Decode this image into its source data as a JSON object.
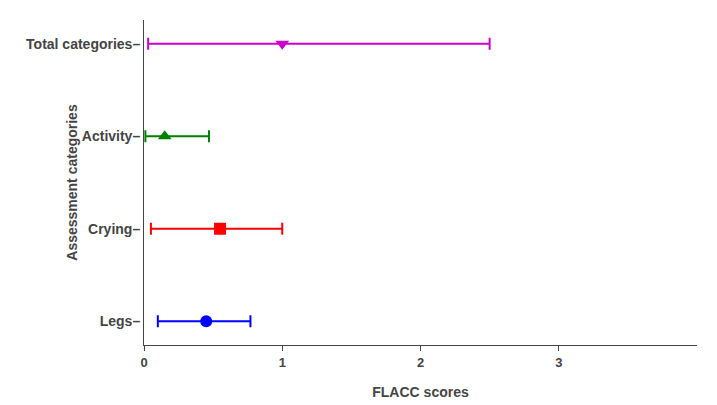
{
  "chart_data": {
    "type": "scatter",
    "categories": [
      "Total categories–",
      "Activity–",
      "Crying–",
      "Legs–"
    ],
    "series": [
      {
        "color": "#cc00cc",
        "marker": "triangle-down",
        "values": [
          1.0,
          null,
          null,
          null
        ],
        "error_minus": [
          0.97,
          null,
          null,
          null
        ],
        "error_plus": [
          1.5,
          null,
          null,
          null
        ]
      },
      {
        "color": "#008000",
        "marker": "triangle-up",
        "values": [
          null,
          0.15,
          null,
          null
        ],
        "error_minus": [
          null,
          0.14,
          null,
          null
        ],
        "error_plus": [
          null,
          0.32,
          null,
          null
        ]
      },
      {
        "color": "#ff0000",
        "marker": "square",
        "values": [
          null,
          null,
          0.55,
          null
        ],
        "error_minus": [
          null,
          null,
          0.5,
          null
        ],
        "error_plus": [
          null,
          null,
          0.45,
          null
        ]
      },
      {
        "color": "#0000ff",
        "marker": "circle",
        "values": [
          null,
          null,
          null,
          0.45
        ],
        "error_minus": [
          null,
          null,
          null,
          0.35
        ],
        "error_plus": [
          null,
          null,
          null,
          0.32
        ]
      }
    ],
    "xlabel": "FLACC scores",
    "ylabel": "Assessment categories",
    "xlim": [
      0,
      4
    ],
    "xticks": [
      0,
      1,
      2,
      3
    ],
    "grid": false
  }
}
